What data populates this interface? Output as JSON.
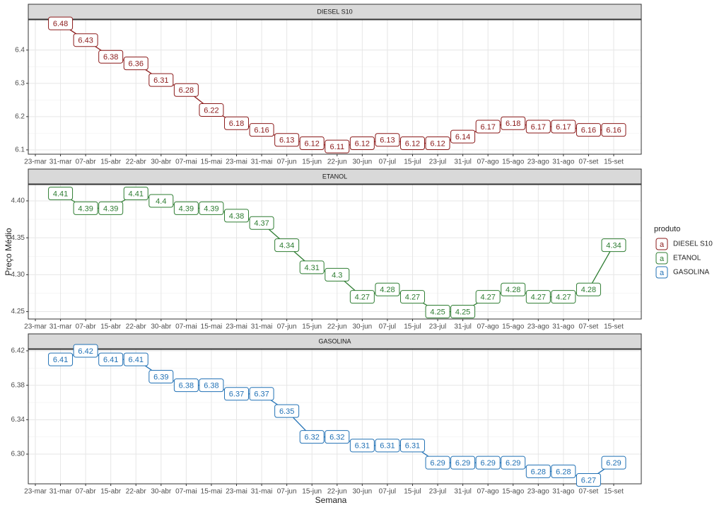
{
  "chart_data": {
    "type": "line",
    "x_label": "Semana",
    "y_label": "Preço Médio",
    "legend_title": "produto",
    "legend_key": "a",
    "categories": [
      "23-mar",
      "31-mar",
      "07-abr",
      "15-abr",
      "22-abr",
      "30-abr",
      "07-mai",
      "15-mai",
      "23-mai",
      "31-mai",
      "07-jun",
      "15-jun",
      "22-jun",
      "30-jun",
      "07-jul",
      "15-jul",
      "23-jul",
      "31-jul",
      "07-ago",
      "15-ago",
      "23-ago",
      "31-ago",
      "07-set",
      "15-set"
    ],
    "grid": true,
    "series": [
      {
        "name": "DIESEL S10",
        "color": "#8b1a1a",
        "values": [
          null,
          6.48,
          6.43,
          6.38,
          6.36,
          6.31,
          6.28,
          6.22,
          6.18,
          6.16,
          6.13,
          6.12,
          6.11,
          6.12,
          6.13,
          6.12,
          6.12,
          6.14,
          6.17,
          6.18,
          6.17,
          6.17,
          6.16,
          6.16
        ],
        "ylim": [
          6.087,
          6.491
        ],
        "yticks": [
          6.1,
          6.2,
          6.3,
          6.4
        ]
      },
      {
        "name": "ETANOL",
        "color": "#2e7d32",
        "values": [
          null,
          4.41,
          4.39,
          4.39,
          4.41,
          4.4,
          4.39,
          4.39,
          4.38,
          4.37,
          4.34,
          4.31,
          4.3,
          4.27,
          4.28,
          4.27,
          4.25,
          4.25,
          4.27,
          4.28,
          4.27,
          4.27,
          4.28,
          4.34
        ],
        "ylim": [
          4.24,
          4.422
        ],
        "yticks": [
          4.25,
          {
            "value": 4.3,
            "label": "4.30"
          },
          4.35,
          {
            "value": 4.4,
            "label": "4.40"
          }
        ]
      },
      {
        "name": "GASOLINA",
        "color": "#2171b5",
        "values": [
          null,
          6.41,
          6.42,
          6.41,
          6.41,
          6.39,
          6.38,
          6.38,
          6.37,
          6.37,
          6.35,
          6.32,
          6.32,
          6.31,
          6.31,
          6.31,
          6.29,
          6.29,
          6.29,
          6.29,
          6.28,
          6.28,
          6.27,
          6.29
        ],
        "ylim": [
          6.2655,
          6.4216
        ],
        "yticks": [
          {
            "value": 6.3,
            "label": "6.30"
          },
          6.34,
          6.38,
          6.42
        ]
      }
    ]
  }
}
